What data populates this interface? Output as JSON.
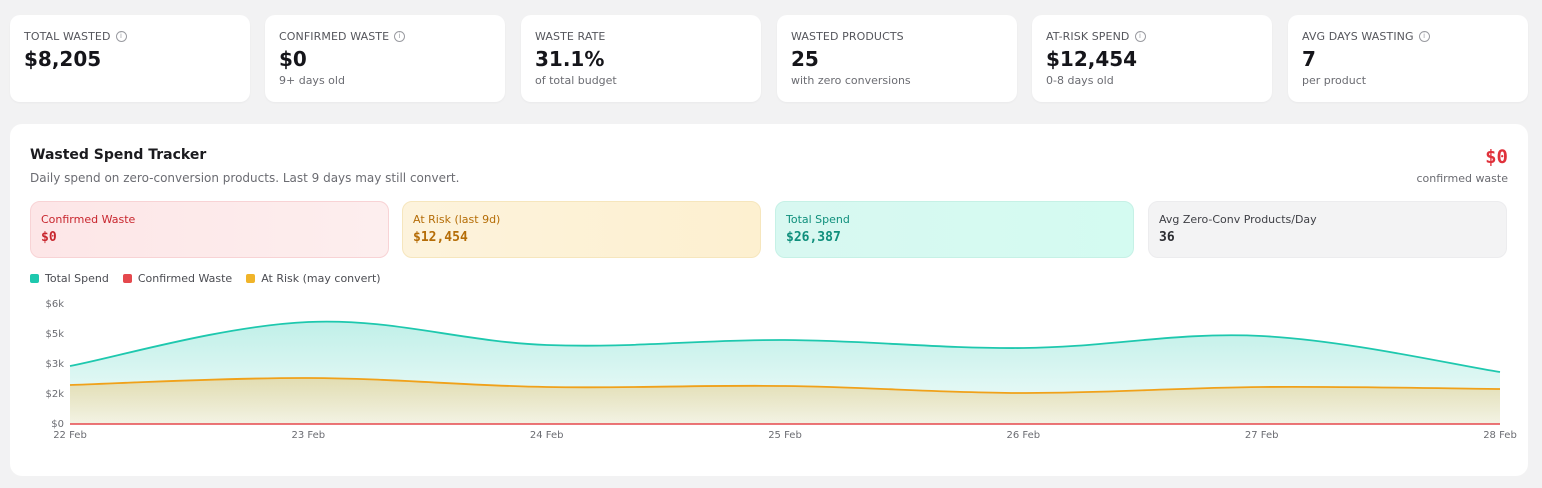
{
  "kpis": [
    {
      "label": "TOTAL WASTED",
      "value": "$8,205",
      "sub": "",
      "info": true
    },
    {
      "label": "CONFIRMED WASTE",
      "value": "$0",
      "sub": "9+ days old",
      "info": true
    },
    {
      "label": "WASTE RATE",
      "value": "31.1%",
      "sub": "of total budget",
      "info": false
    },
    {
      "label": "WASTED PRODUCTS",
      "value": "25",
      "sub": "with zero conversions",
      "info": false
    },
    {
      "label": "AT-RISK SPEND",
      "value": "$12,454",
      "sub": "0-8 days old",
      "info": true
    },
    {
      "label": "AVG DAYS WASTING",
      "value": "7",
      "sub": "per product",
      "info": true
    }
  ],
  "info_glyph": "i",
  "tracker": {
    "title": "Wasted Spend Tracker",
    "description": "Daily spend on zero-conversion products. Last 9 days may still convert.",
    "headline_value": "$0",
    "headline_sub": "confirmed waste",
    "stats": [
      {
        "label": "Confirmed Waste",
        "value": "$0"
      },
      {
        "label": "At Risk (last 9d)",
        "value": "$12,454"
      },
      {
        "label": "Total Spend",
        "value": "$26,387"
      },
      {
        "label": "Avg Zero-Conv Products/Day",
        "value": "36"
      }
    ],
    "legend": [
      {
        "label": "Total Spend",
        "color": "#1ec8ae"
      },
      {
        "label": "Confirmed Waste",
        "color": "#e5484d"
      },
      {
        "label": "At Risk (may convert)",
        "color": "#f0b429"
      }
    ]
  },
  "chart_data": {
    "type": "area",
    "x": [
      "22 Feb",
      "23 Feb",
      "24 Feb",
      "25 Feb",
      "26 Feb",
      "27 Feb",
      "28 Feb"
    ],
    "y_ticks": [
      "$0",
      "$2k",
      "$3k",
      "$5k",
      "$6k"
    ],
    "ylim": [
      0,
      6000
    ],
    "series": [
      {
        "name": "Total Spend",
        "color": "#1ec8ae",
        "values": [
          2900,
          5100,
          3950,
          4200,
          3800,
          4400,
          2600
        ]
      },
      {
        "name": "At Risk (may convert)",
        "color": "#f0a11a",
        "values": [
          1950,
          2300,
          1850,
          1900,
          1550,
          1850,
          1750
        ]
      },
      {
        "name": "Confirmed Waste",
        "color": "#e5484d",
        "values": [
          0,
          0,
          0,
          0,
          0,
          0,
          0
        ]
      }
    ],
    "grid": false,
    "legend_position": "top-left"
  }
}
